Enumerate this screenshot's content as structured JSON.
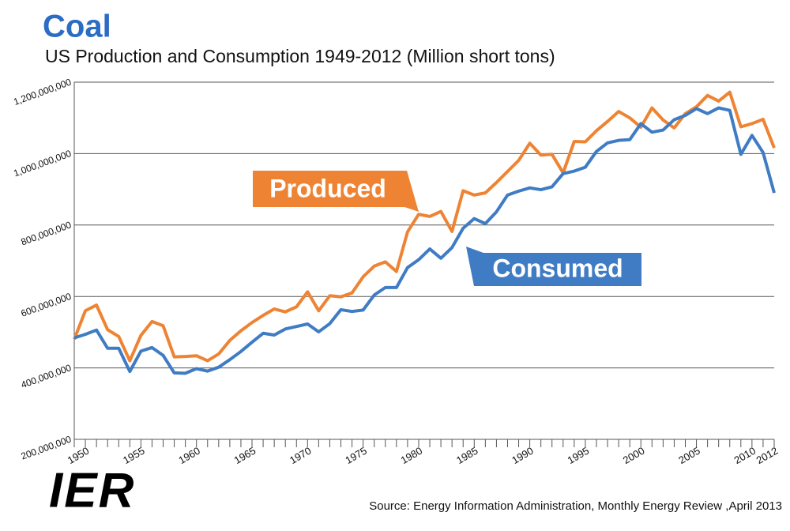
{
  "chart_data": {
    "type": "line",
    "title": "Coal",
    "subtitle": "US Production and Consumption 1949-2012 (Million short tons)",
    "annotations": [
      "Produced",
      "Consumed"
    ],
    "logo": "IER",
    "source": "Source: Energy Information Administration, Monthly Energy Review ,April 2013",
    "x": [
      1949,
      1950,
      1951,
      1952,
      1953,
      1954,
      1955,
      1956,
      1957,
      1958,
      1959,
      1960,
      1961,
      1962,
      1963,
      1964,
      1965,
      1966,
      1967,
      1968,
      1969,
      1970,
      1971,
      1972,
      1973,
      1974,
      1975,
      1976,
      1977,
      1978,
      1979,
      1980,
      1981,
      1982,
      1983,
      1984,
      1985,
      1986,
      1987,
      1988,
      1989,
      1990,
      1991,
      1992,
      1993,
      1994,
      1995,
      1996,
      1997,
      1998,
      1999,
      2000,
      2001,
      2002,
      2003,
      2004,
      2005,
      2006,
      2007,
      2008,
      2009,
      2010,
      2011,
      2012
    ],
    "series": [
      {
        "name": "Produced",
        "color": "#ee8433",
        "values": [
          480000000,
          560000000,
          576000000,
          507000000,
          488000000,
          420000000,
          491000000,
          530000000,
          518000000,
          431000000,
          432000000,
          434000000,
          420000000,
          439000000,
          477000000,
          504000000,
          527000000,
          547000000,
          565000000,
          557000000,
          571000000,
          613000000,
          560000000,
          602000000,
          599000000,
          610000000,
          655000000,
          685000000,
          697000000,
          670000000,
          781000000,
          830000000,
          824000000,
          838000000,
          782000000,
          896000000,
          884000000,
          890000000,
          919000000,
          950000000,
          981000000,
          1029000000,
          996000000,
          998000000,
          946000000,
          1034000000,
          1033000000,
          1064000000,
          1090000000,
          1118000000,
          1100000000,
          1074000000,
          1128000000,
          1094000000,
          1072000000,
          1112000000,
          1131000000,
          1163000000,
          1147000000,
          1172000000,
          1075000000,
          1084000000,
          1096000000,
          1016000000
        ]
      },
      {
        "name": "Consumed",
        "color": "#3f7cc4",
        "values": [
          484000000,
          494000000,
          506000000,
          455000000,
          455000000,
          390000000,
          447000000,
          457000000,
          435000000,
          386000000,
          385000000,
          398000000,
          391000000,
          402000000,
          423000000,
          446000000,
          472000000,
          497000000,
          492000000,
          509000000,
          516000000,
          523000000,
          501000000,
          524000000,
          563000000,
          558000000,
          562000000,
          604000000,
          625000000,
          625000000,
          681000000,
          703000000,
          733000000,
          707000000,
          737000000,
          791000000,
          818000000,
          804000000,
          837000000,
          884000000,
          895000000,
          904000000,
          899000000,
          907000000,
          944000000,
          951000000,
          962000000,
          1006000000,
          1030000000,
          1037000000,
          1039000000,
          1084000000,
          1060000000,
          1066000000,
          1095000000,
          1107000000,
          1126000000,
          1112000000,
          1128000000,
          1121000000,
          998000000,
          1051000000,
          1003000000,
          890000000
        ]
      }
    ],
    "xlim": [
      1949,
      2012
    ],
    "xticks": [
      1950,
      1955,
      1960,
      1965,
      1970,
      1975,
      1980,
      1985,
      1990,
      1995,
      2000,
      2005,
      2010,
      2012
    ],
    "ylim": [
      200000000,
      1200000000
    ],
    "yticks": [
      {
        "value": 200000000,
        "label": "200,000,000"
      },
      {
        "value": 400000000,
        "label": "400,000,000"
      },
      {
        "value": 600000000,
        "label": "600,000,000"
      },
      {
        "value": 800000000,
        "label": "800,000,000"
      },
      {
        "value": 1000000000,
        "label": "1,000,000,000"
      },
      {
        "value": 1200000000,
        "label": "1,200,000,000"
      }
    ],
    "grid": true
  }
}
